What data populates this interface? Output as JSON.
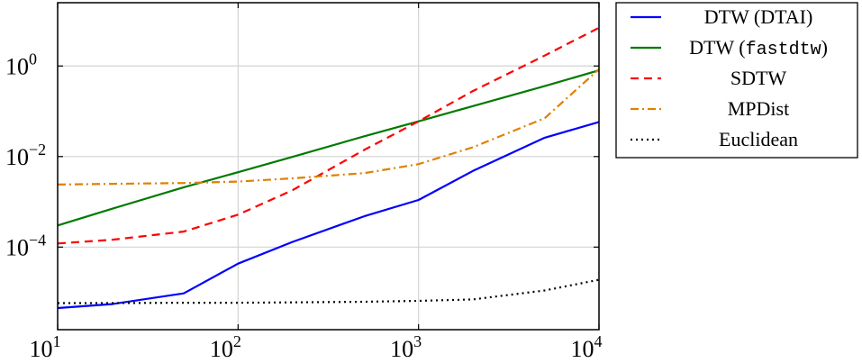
{
  "chart_data": {
    "type": "line",
    "xscale": "log",
    "yscale": "log",
    "xlim": [
      10,
      10000
    ],
    "ylim": [
      1.5e-06,
      25
    ],
    "grid": true,
    "legend_position": "outside-right",
    "x_ticks": [
      {
        "value": 10,
        "base": "10",
        "exp": "1"
      },
      {
        "value": 100,
        "base": "10",
        "exp": "2"
      },
      {
        "value": 1000,
        "base": "10",
        "exp": "3"
      },
      {
        "value": 10000,
        "base": "10",
        "exp": "4"
      }
    ],
    "y_ticks": [
      {
        "value": 0.0001,
        "base": "10",
        "exp": "−4"
      },
      {
        "value": 0.01,
        "base": "10",
        "exp": "−2"
      },
      {
        "value": 1,
        "base": "10",
        "exp": "0"
      }
    ],
    "series": [
      {
        "name": "DTW (DTAI)",
        "name_parts": [
          {
            "text": "DTW (DTAI)",
            "mono": false
          }
        ],
        "color": "#0000ff",
        "dash": "",
        "width": 2.2,
        "x": [
          10,
          20,
          50,
          100,
          200,
          500,
          1000,
          2000,
          5000,
          10000
        ],
        "y": [
          4.5e-06,
          5.5e-06,
          9.5e-06,
          4.3e-05,
          0.00013,
          0.00048,
          0.0011,
          0.0048,
          0.026,
          0.058
        ]
      },
      {
        "name": "DTW (fastdtw)",
        "name_parts": [
          {
            "text": "DTW (",
            "mono": false
          },
          {
            "text": "fastdtw",
            "mono": true
          },
          {
            "text": ")",
            "mono": false
          }
        ],
        "color": "#007a00",
        "dash": "",
        "width": 2.2,
        "x": [
          10,
          20,
          50,
          100,
          200,
          500,
          1000,
          2000,
          5000,
          10000
        ],
        "y": [
          0.0003,
          0.0007,
          0.0021,
          0.0045,
          0.0098,
          0.028,
          0.06,
          0.13,
          0.36,
          0.8
        ]
      },
      {
        "name": "SDTW",
        "name_parts": [
          {
            "text": "SDTW",
            "mono": false
          }
        ],
        "color": "#ff0000",
        "dash": "9 6",
        "width": 2.2,
        "x": [
          10,
          20,
          50,
          100,
          200,
          500,
          1000,
          2000,
          5000,
          10000
        ],
        "y": [
          0.00012,
          0.000145,
          0.00022,
          0.00052,
          0.0018,
          0.014,
          0.06,
          0.28,
          1.7,
          7.0
        ]
      },
      {
        "name": "MPDist",
        "name_parts": [
          {
            "text": "MPDist",
            "mono": false
          }
        ],
        "color": "#e08000",
        "dash": "9 4 2 4",
        "width": 2.2,
        "x": [
          10,
          20,
          50,
          100,
          200,
          500,
          1000,
          2000,
          5000,
          10000
        ],
        "y": [
          0.0024,
          0.0025,
          0.0026,
          0.0028,
          0.0033,
          0.0043,
          0.0068,
          0.016,
          0.07,
          0.85
        ]
      },
      {
        "name": "Euclidean",
        "name_parts": [
          {
            "text": "Euclidean",
            "mono": false
          }
        ],
        "color": "#000000",
        "dash": "2 4",
        "width": 2.2,
        "x": [
          10,
          20,
          50,
          100,
          200,
          500,
          1000,
          2000,
          5000,
          10000
        ],
        "y": [
          5.8e-06,
          5.8e-06,
          5.9e-06,
          5.9e-06,
          6e-06,
          6.2e-06,
          6.5e-06,
          7e-06,
          1.1e-05,
          1.9e-05
        ]
      }
    ]
  }
}
